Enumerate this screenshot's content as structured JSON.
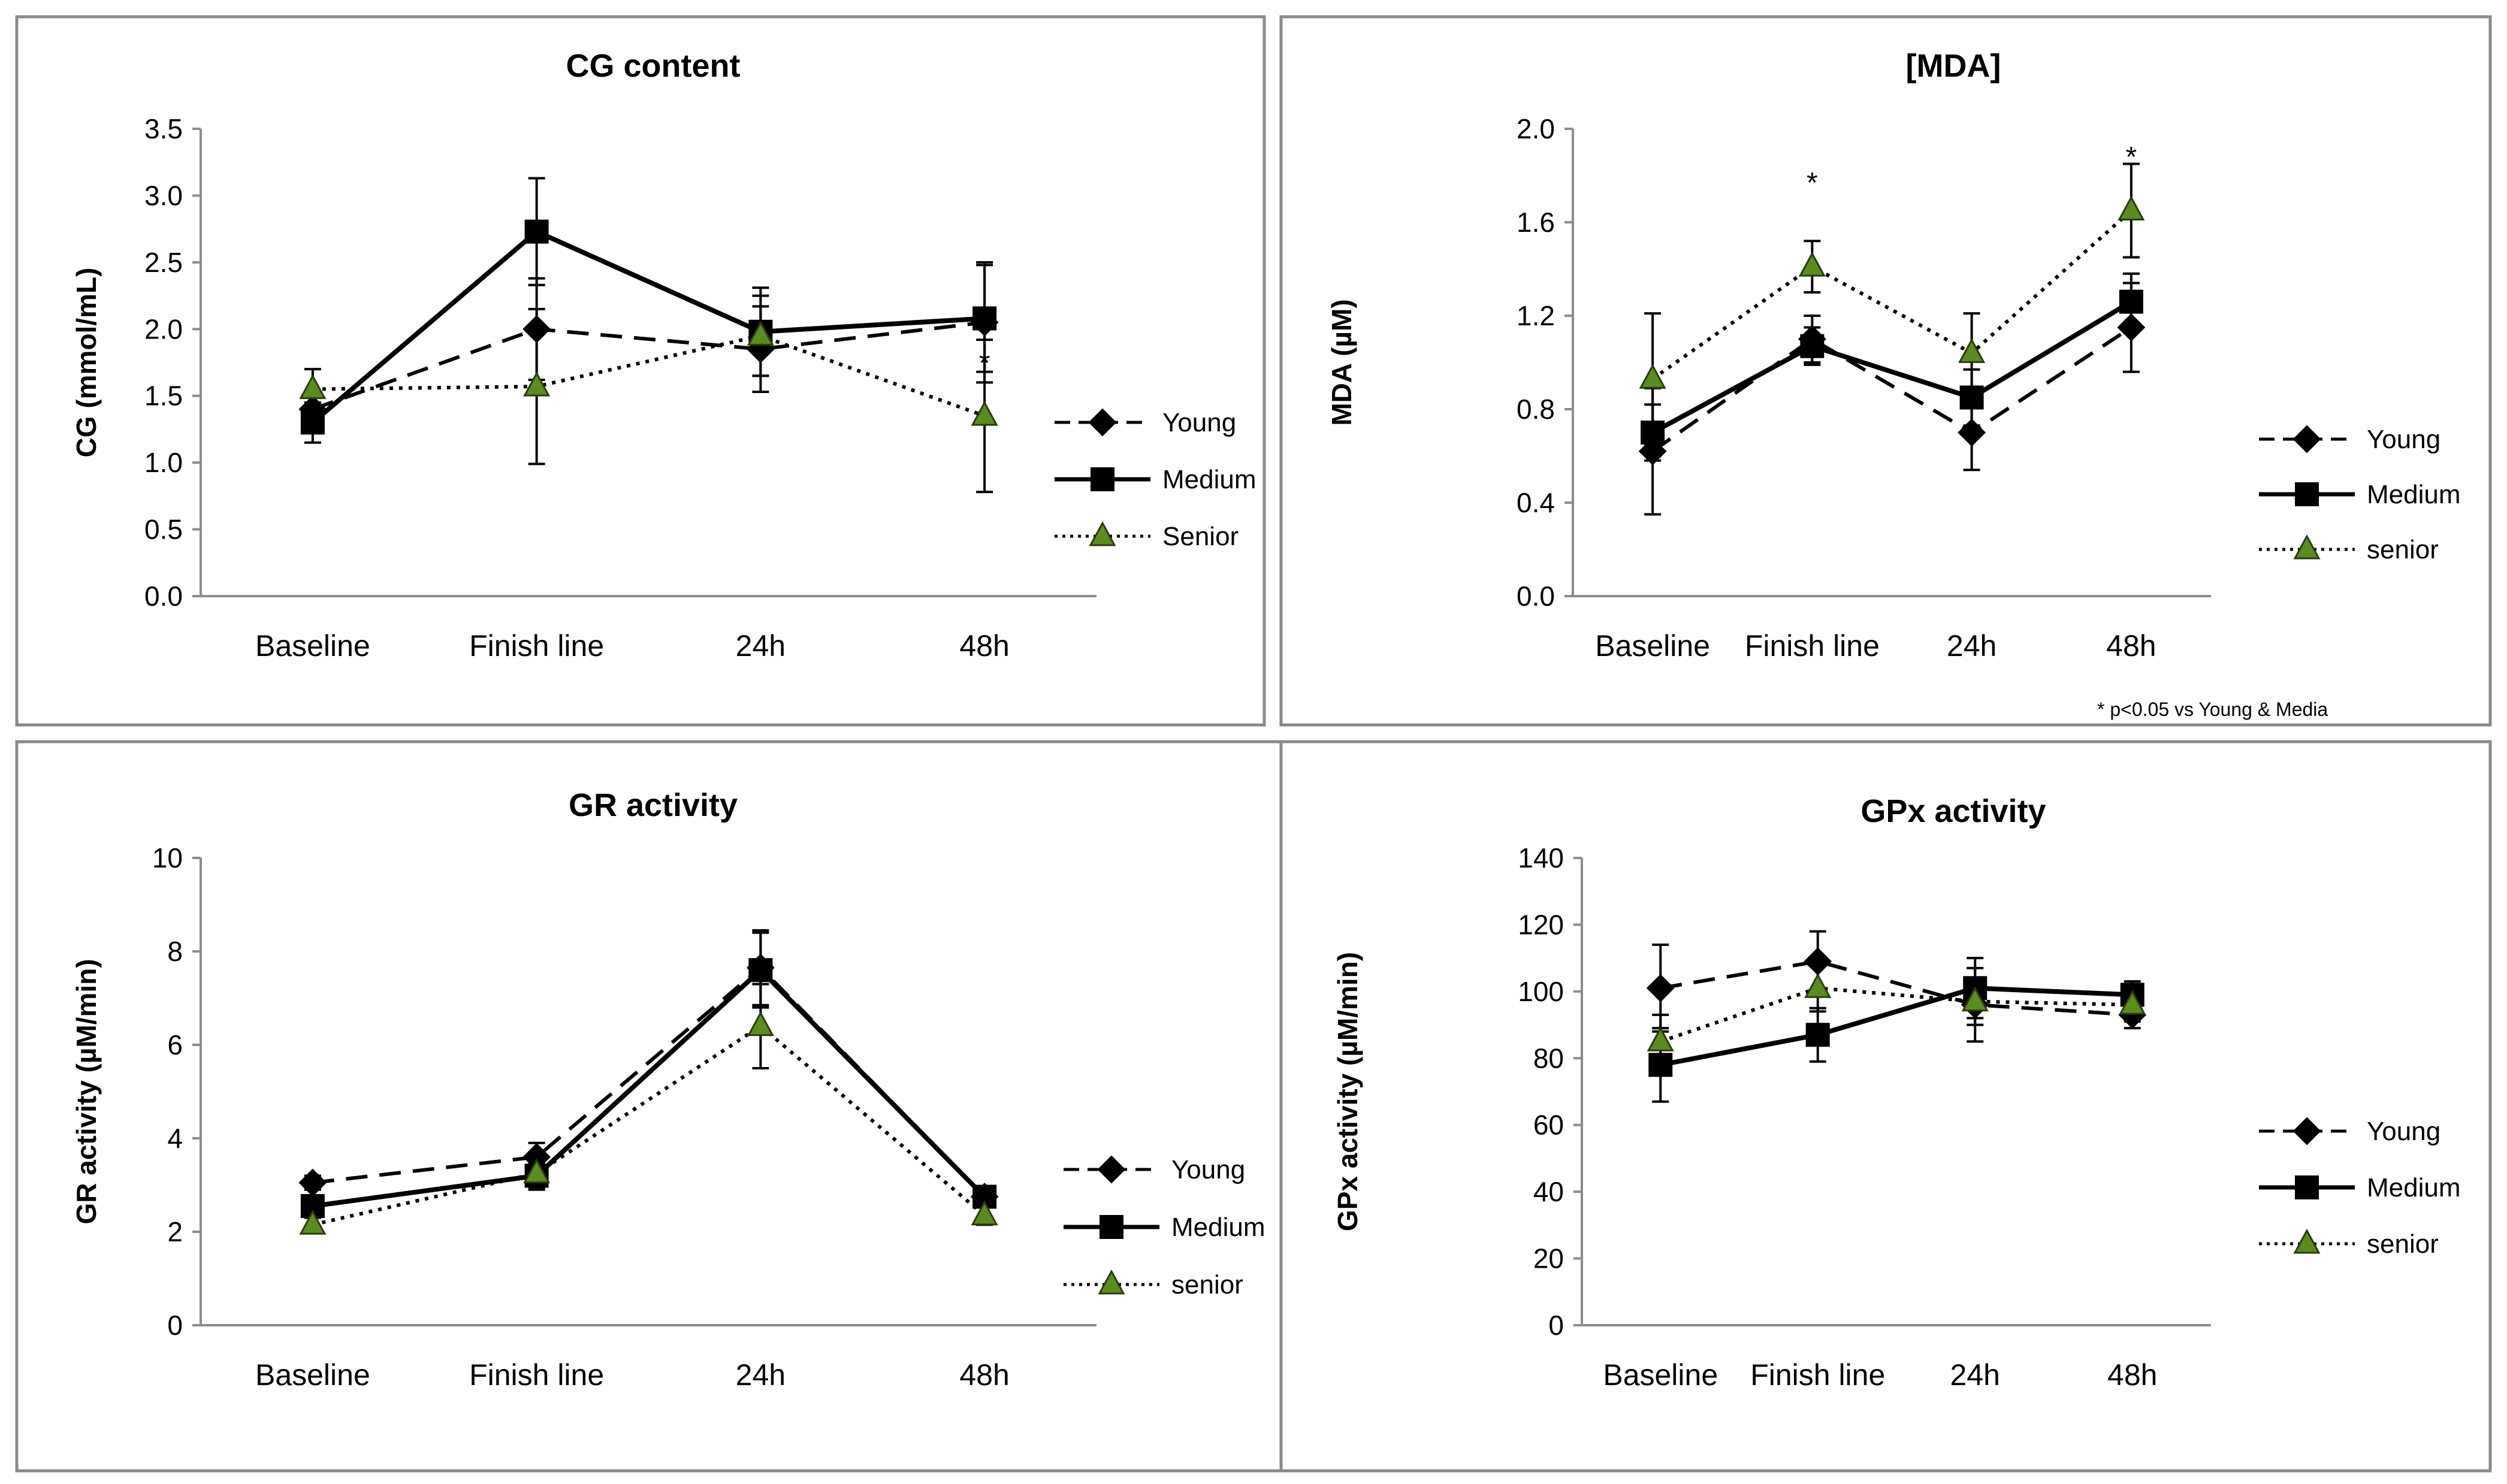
{
  "figure": {
    "chart_data": [
      {
        "id": "cg",
        "type": "line",
        "title": "CG content",
        "ylabel": "CG (mmol/mL)",
        "xlabel": "",
        "categories": [
          "Baseline",
          "Finish line",
          "24h",
          "48h"
        ],
        "ylim": [
          0,
          3.5
        ],
        "yticks": [
          0.0,
          0.5,
          1.0,
          1.5,
          2.0,
          2.5,
          3.0,
          3.5
        ],
        "tick_decimals": 1,
        "legend_position": "right",
        "series": [
          {
            "name": "Young",
            "style": "dashed",
            "marker": "diamond",
            "color": "#000000",
            "values": [
              1.4,
              2.0,
              1.85,
              2.05
            ],
            "errors": [
              0.1,
              0.38,
              0.32,
              0.45
            ]
          },
          {
            "name": "Medium",
            "style": "solid",
            "marker": "square",
            "color": "#000000",
            "values": [
              1.3,
              2.73,
              1.98,
              2.08
            ],
            "errors": [
              0.15,
              0.4,
              0.33,
              0.4
            ]
          },
          {
            "name": "Senior",
            "style": "dotted",
            "marker": "triangle",
            "color": "#5b8c1e",
            "values": [
              1.55,
              1.57,
              1.95,
              1.35
            ],
            "errors": [
              0.15,
              0.58,
              0.3,
              0.57
            ]
          }
        ],
        "annotations": [
          {
            "text": "*",
            "category_index": 3,
            "y": 1.8
          }
        ],
        "footnote": ""
      },
      {
        "id": "mda",
        "type": "line",
        "title": "[MDA]",
        "ylabel": "MDA (µM)",
        "xlabel": "",
        "categories": [
          "Baseline",
          "Finish line",
          "24h",
          "48h"
        ],
        "ylim": [
          0,
          2.0
        ],
        "yticks": [
          0.0,
          0.4,
          0.8,
          1.2,
          1.6,
          2.0
        ],
        "tick_decimals": 1,
        "legend_position": "right",
        "series": [
          {
            "name": "Young",
            "style": "dashed",
            "marker": "diamond",
            "color": "#000000",
            "values": [
              0.62,
              1.1,
              0.7,
              1.15
            ],
            "errors": [
              0.27,
              0.1,
              0.16,
              0.19
            ]
          },
          {
            "name": "Medium",
            "style": "solid",
            "marker": "square",
            "color": "#000000",
            "values": [
              0.7,
              1.07,
              0.85,
              1.26
            ],
            "errors": [
              0.12,
              0.08,
              0.12,
              0.12
            ]
          },
          {
            "name": "senior",
            "style": "dotted",
            "marker": "triangle",
            "color": "#5b8c1e",
            "values": [
              0.93,
              1.41,
              1.04,
              1.65
            ],
            "errors": [
              0.28,
              0.11,
              0.17,
              0.2
            ]
          }
        ],
        "annotations": [
          {
            "text": "*",
            "category_index": 1,
            "y": 1.8
          },
          {
            "text": "*",
            "category_index": 3,
            "y": 1.91
          }
        ],
        "footnote": "* p<0.05 vs Young & Media"
      },
      {
        "id": "gr",
        "type": "line",
        "title": "GR activity",
        "ylabel": "GR activity (µM/min)",
        "xlabel": "",
        "categories": [
          "Baseline",
          "Finish line",
          "24h",
          "48h"
        ],
        "ylim": [
          0,
          10
        ],
        "yticks": [
          0,
          2,
          4,
          6,
          8,
          10
        ],
        "tick_decimals": 0,
        "legend_position": "right",
        "series": [
          {
            "name": "Young",
            "style": "dashed",
            "marker": "diamond",
            "color": "#000000",
            "values": [
              3.05,
              3.6,
              7.65,
              2.75
            ],
            "errors": [
              0.15,
              0.3,
              0.8,
              0.2
            ]
          },
          {
            "name": "Medium",
            "style": "solid",
            "marker": "square",
            "color": "#000000",
            "values": [
              2.55,
              3.2,
              7.6,
              2.75
            ],
            "errors": [
              0.2,
              0.25,
              0.8,
              0.2
            ]
          },
          {
            "name": "senior",
            "style": "dotted",
            "marker": "triangle",
            "color": "#5b8c1e",
            "values": [
              2.15,
              3.25,
              6.4,
              2.35
            ],
            "errors": [
              0.15,
              0.35,
              0.9,
              0.2
            ]
          }
        ],
        "annotations": [],
        "footnote": ""
      },
      {
        "id": "gpx",
        "type": "line",
        "title": "GPx activity",
        "ylabel": "GPx activity (µM/min)",
        "xlabel": "",
        "categories": [
          "Baseline",
          "Finish line",
          "24h",
          "48h"
        ],
        "ylim": [
          0,
          140
        ],
        "yticks": [
          0,
          20,
          40,
          60,
          80,
          100,
          120,
          140
        ],
        "tick_decimals": 0,
        "legend_position": "right",
        "series": [
          {
            "name": "Young",
            "style": "dashed",
            "marker": "diamond",
            "color": "#000000",
            "values": [
              101,
              109,
              96,
              93
            ],
            "errors": [
              13,
              9,
              11,
              4
            ]
          },
          {
            "name": "Medium",
            "style": "solid",
            "marker": "square",
            "color": "#000000",
            "values": [
              78,
              87,
              101,
              99
            ],
            "errors": [
              11,
              8,
              9,
              4
            ]
          },
          {
            "name": "senior",
            "style": "dotted",
            "marker": "triangle",
            "color": "#5b8c1e",
            "values": [
              85,
              101,
              97,
              96
            ],
            "errors": [
              8,
              7,
              7,
              5
            ]
          }
        ],
        "annotations": [],
        "footnote": ""
      }
    ]
  }
}
